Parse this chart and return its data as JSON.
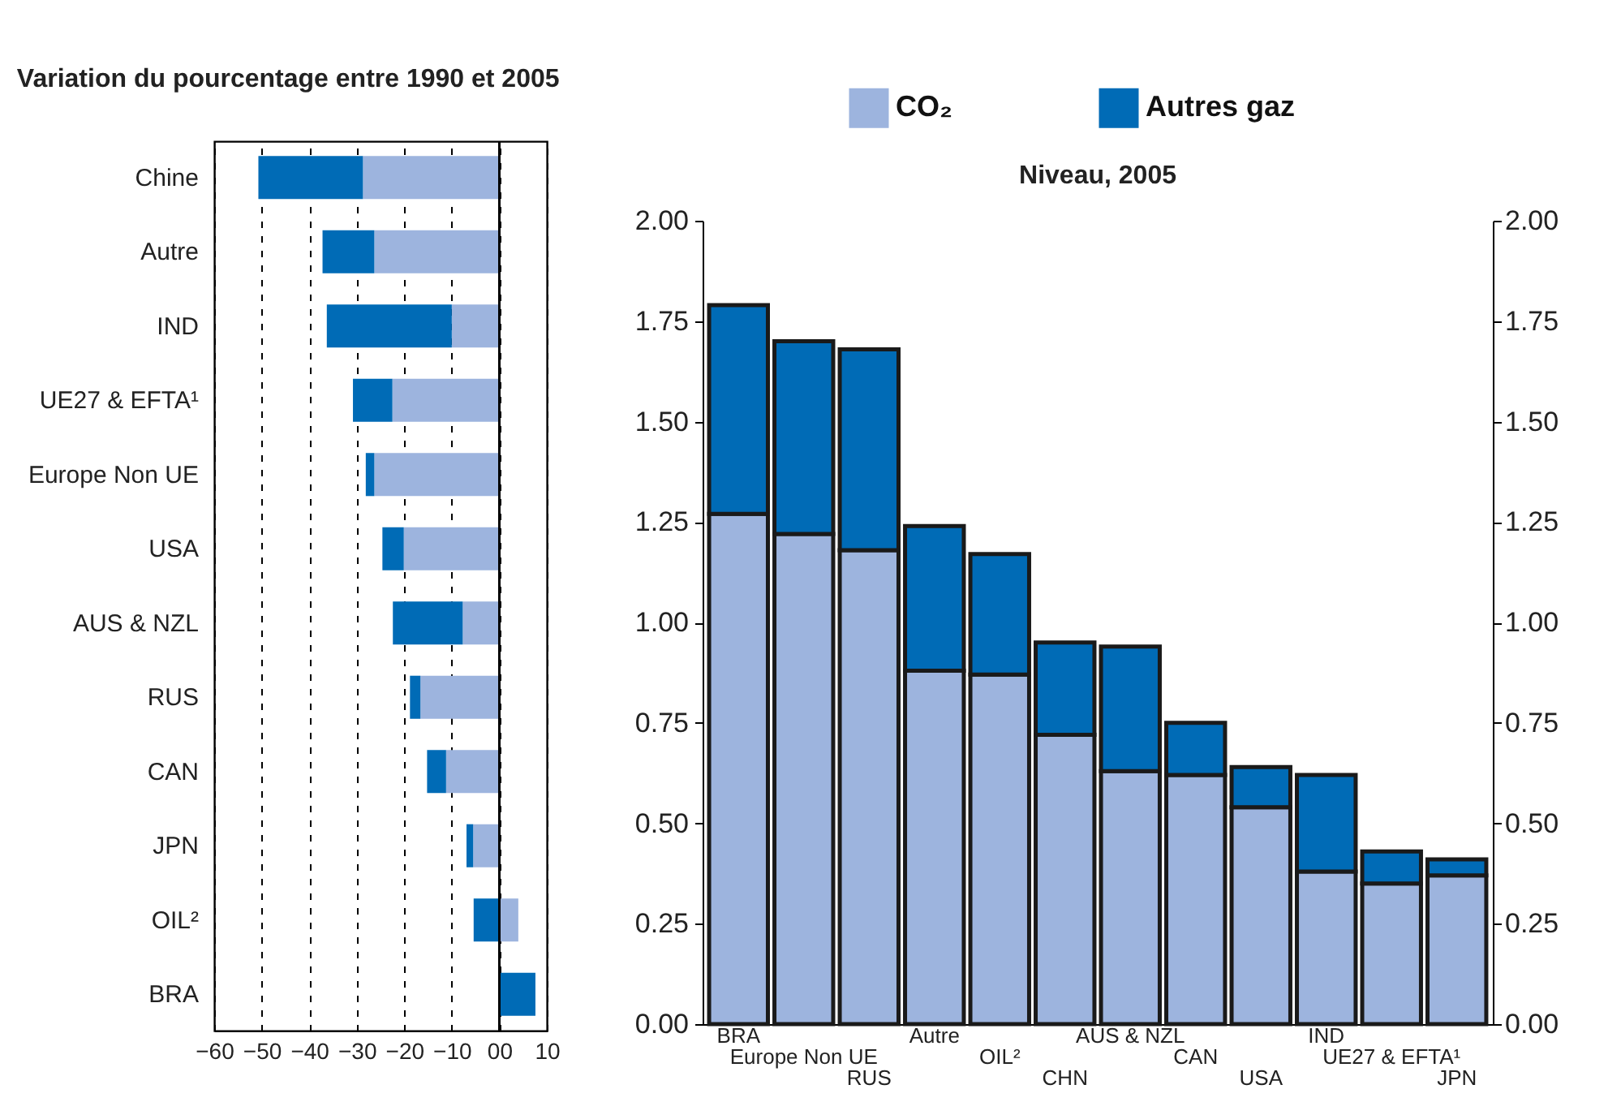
{
  "chart_data": [
    {
      "type": "bar",
      "title": "Variation du pourcentage entre 1990 et 2005",
      "orientation": "horizontal",
      "stacked": true,
      "categories": [
        "Chine",
        "Autre",
        "IND",
        "UE27 & EFTA¹",
        "Europe Non UE",
        "USA",
        "AUS & NZL",
        "RUS",
        "CAN",
        "JPN",
        "OIL²",
        "BRA"
      ],
      "series": [
        {
          "color": "#9db4de",
          "values": [
            -28.7,
            -26.3,
            -10,
            -22.5,
            -26.3,
            -20.1,
            -7.7,
            -16.6,
            -11.2,
            -5.5,
            4.0,
            null
          ]
        },
        {
          "color": "#006bb6",
          "values": [
            -22,
            -10.9,
            -26.3,
            -8.3,
            -1.8,
            -4.5,
            -14.7,
            -2.2,
            -4.0,
            -1.4,
            -5.4,
            7.6
          ]
        }
      ],
      "xlim": [
        -60,
        10
      ],
      "xticks": [
        -60,
        -50,
        -40,
        -30,
        -20,
        -10,
        {
          "value": 0,
          "label": "00"
        },
        10
      ],
      "grid": "x",
      "ref_lines": [
        {
          "axis": "x",
          "value": 0,
          "color": "#000000",
          "line_style": "solid"
        }
      ]
    },
    {
      "type": "bar",
      "title": "Niveau, 2005",
      "stacked": true,
      "categories": [
        "BRA",
        "Europe Non UE",
        "RUS",
        "Autre",
        "OIL²",
        "CHN",
        "AUS & NZL",
        "CAN",
        "USA",
        "IND",
        "UE27 & EFTA¹",
        "JPN"
      ],
      "series": [
        {
          "name": "CO₂",
          "color": "#9db4de",
          "values": [
            1.27,
            1.22,
            1.18,
            0.88,
            0.87,
            0.72,
            0.63,
            0.62,
            0.54,
            0.38,
            0.35,
            0.37
          ]
        },
        {
          "name": "Autres gaz",
          "color": "#006bb6",
          "values": [
            0.52,
            0.48,
            0.5,
            0.36,
            0.3,
            0.23,
            0.31,
            0.13,
            0.1,
            0.24,
            0.08,
            0.04
          ]
        }
      ],
      "ylim": [
        0,
        2
      ],
      "yticks": [
        {
          "value": 0,
          "label": "0.00"
        },
        {
          "value": 0.25,
          "label": "0.25"
        },
        {
          "value": 0.5,
          "label": "0.50"
        },
        {
          "value": 0.75,
          "label": "0.75"
        },
        {
          "value": 1,
          "label": "1.00"
        },
        {
          "value": 1.25,
          "label": "1.25"
        },
        {
          "value": 1.5,
          "label": "1.50"
        },
        {
          "value": 1.75,
          "label": "1.75"
        },
        {
          "value": 2,
          "label": "2.00"
        }
      ],
      "y2lim": [
        0,
        2
      ],
      "y2ticks": [
        {
          "value": 0,
          "label": "0.00"
        },
        {
          "value": 0.25,
          "label": "0.25"
        },
        {
          "value": 0.5,
          "label": "0.50"
        },
        {
          "value": 0.75,
          "label": "0.75"
        },
        {
          "value": 1,
          "label": "1.00"
        },
        {
          "value": 1.25,
          "label": "1.25"
        },
        {
          "value": 1.5,
          "label": "1.50"
        },
        {
          "value": 1.75,
          "label": "1.75"
        },
        {
          "value": 2,
          "label": "2.00"
        }
      ],
      "legend": "top"
    }
  ]
}
